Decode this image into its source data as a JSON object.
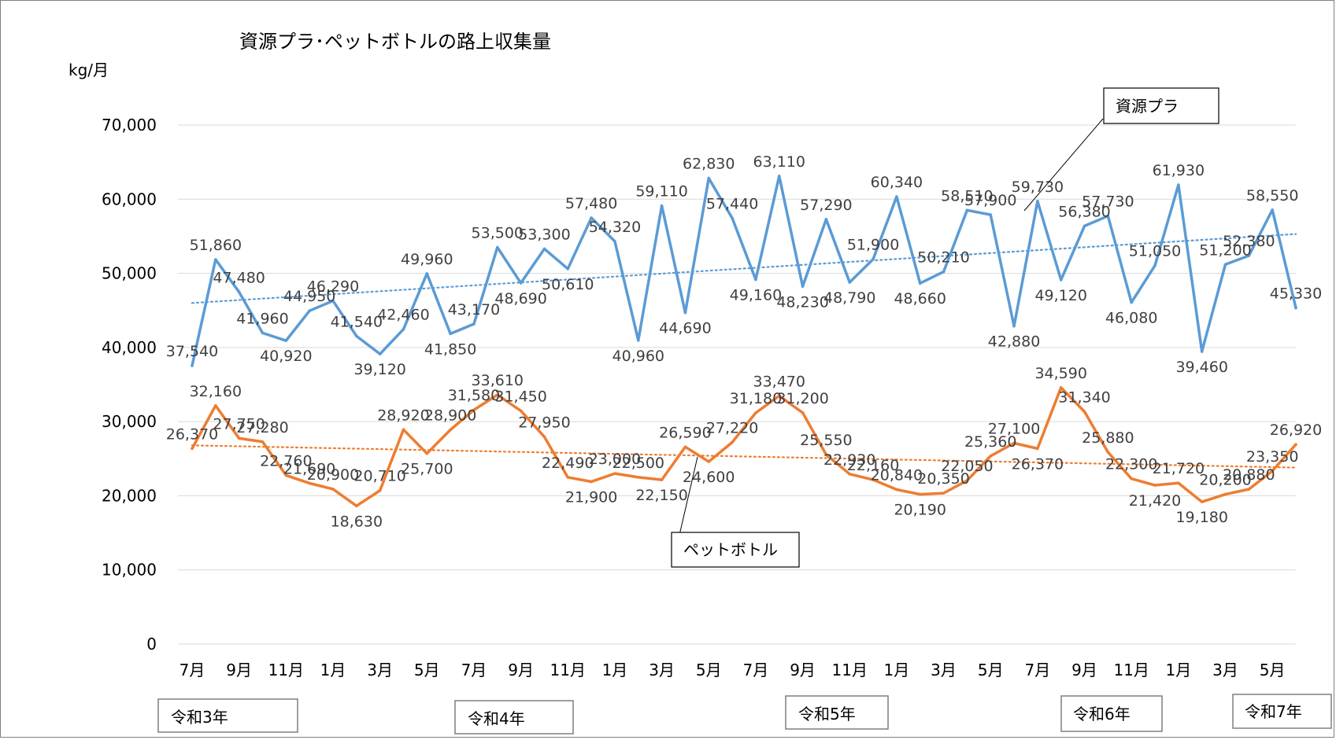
{
  "chart_data": {
    "type": "line",
    "title": "資源プラ･ペットボトルの路上収集量",
    "unit_label": "kg/月",
    "ylim": [
      0,
      70000
    ],
    "yticks": [
      "70,000",
      "60,000",
      "50,000",
      "40,000",
      "30,000",
      "20,000",
      "10,000",
      "0"
    ],
    "xtick_labels": [
      "7月",
      "9月",
      "11月",
      "1月",
      "3月",
      "5月",
      "7月",
      "9月",
      "11月",
      "1月",
      "3月",
      "5月",
      "7月",
      "9月",
      "11月",
      "1月",
      "3月",
      "5月",
      "7月",
      "9月",
      "11月",
      "1月",
      "3月",
      "5月"
    ],
    "grid": true,
    "series": [
      {
        "name": "資源プラ",
        "color": "#5b9bd5",
        "values": [
          37540,
          51860,
          47480,
          41960,
          40920,
          44950,
          46290,
          41540,
          39120,
          42460,
          49960,
          41850,
          43170,
          53500,
          48690,
          53300,
          50610,
          57480,
          54320,
          40960,
          59110,
          44690,
          62830,
          57440,
          49160,
          63110,
          48230,
          57290,
          48790,
          51900,
          60340,
          48660,
          50210,
          58510,
          57900,
          42880,
          59730,
          49120,
          56380,
          57730,
          46080,
          51050,
          61930,
          39460,
          51200,
          52380,
          58550,
          45330
        ],
        "labels": [
          "37,540",
          "51,860",
          "47,480",
          "41,960",
          "40,920",
          "44,950",
          "46,290",
          "41,540",
          "39,120",
          "42,460",
          "49,960",
          "41,850",
          "43,170",
          "53,500",
          "48,690",
          "53,300",
          "50,610",
          "57,480",
          "54,320",
          "40,960",
          "59,110",
          "44,690",
          "62,830",
          "57,440",
          "49,160",
          "63,110",
          "48,230",
          "57,290",
          "48,790",
          "51,900",
          "60,340",
          "48,660",
          "50,210",
          "58,510",
          "57,900",
          "42,880",
          "59,730",
          "49,120",
          "56,380",
          "57,730",
          "46,080",
          "51,050",
          "61,930",
          "39,460",
          "51,200",
          "52,380",
          "58,550",
          "45,330"
        ],
        "trend": [
          46000,
          55300
        ]
      },
      {
        "name": "ペットボトル",
        "color": "#ed7d31",
        "values": [
          26370,
          32160,
          27750,
          27280,
          22760,
          21690,
          20900,
          18630,
          20710,
          28920,
          25700,
          28900,
          31580,
          33610,
          31450,
          27950,
          22490,
          21900,
          23000,
          22500,
          22150,
          26590,
          24600,
          27220,
          31180,
          33470,
          31200,
          25550,
          22930,
          22160,
          20840,
          20190,
          20350,
          22050,
          25360,
          27100,
          26370,
          34590,
          31340,
          25880,
          22300,
          21420,
          21720,
          19180,
          20200,
          20880,
          23350,
          26920
        ],
        "labels": [
          "26,370",
          "32,160",
          "27,750",
          "27,280",
          "22,760",
          "21,690",
          "20,900",
          "18,630",
          "20,710",
          "28,920",
          "25,700",
          "28,900",
          "31,580",
          "33,610",
          "31,450",
          "27,950",
          "22,490",
          "21,900",
          "23,000",
          "22,500",
          "22,150",
          "26,590",
          "24,600",
          "27,220",
          "31,180",
          "33,470",
          "31,200",
          "25,550",
          "22,930",
          "22,160",
          "20,840",
          "20,190",
          "20,350",
          "22,050",
          "25,360",
          "27,100",
          "26,370",
          "34,590",
          "31,340",
          "25,880",
          "22,300",
          "21,420",
          "21,720",
          "19,180",
          "20,200",
          "20,880",
          "23,350",
          "26,920"
        ],
        "trend": [
          26800,
          23800
        ]
      }
    ],
    "eras": [
      "令和3年",
      "令和4年",
      "令和5年",
      "令和6年",
      "令和7年"
    ],
    "callouts": [
      "資源プラ",
      "ペットボトル"
    ]
  }
}
